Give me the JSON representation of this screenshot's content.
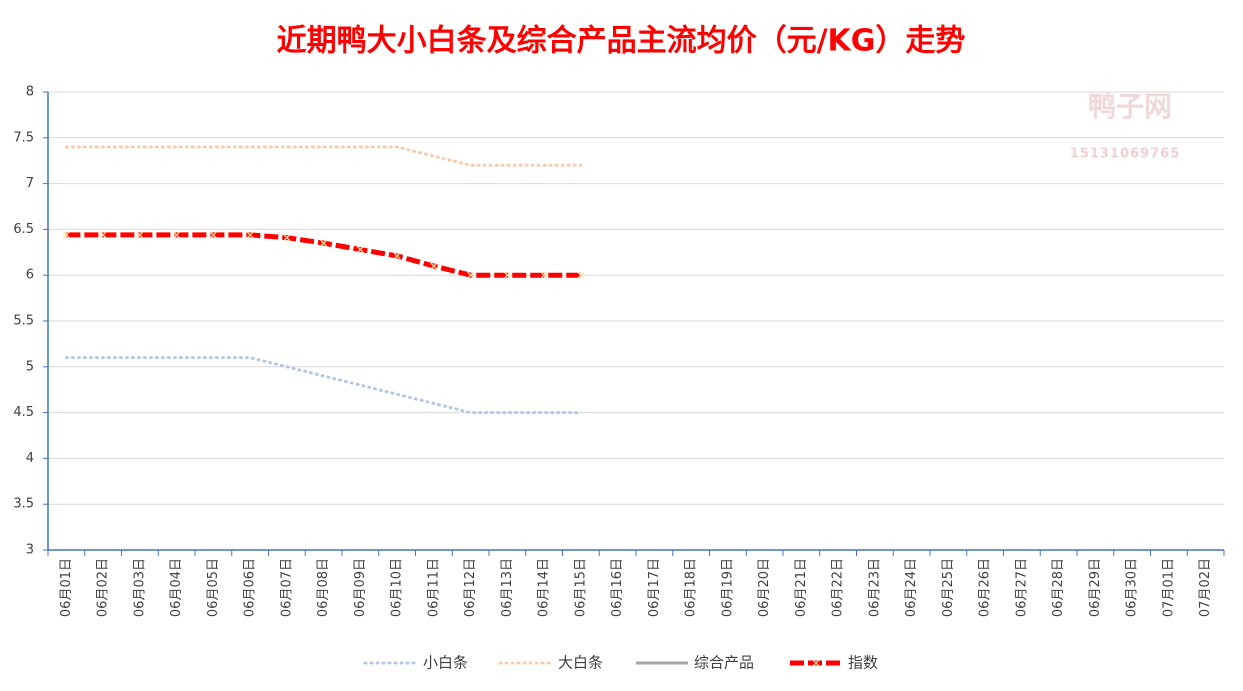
{
  "chart_data": {
    "type": "line",
    "title": "近期鸭大小白条及综合产品主流均价（元/KG）走势",
    "watermark": [
      "鸭子网",
      "15131069765"
    ],
    "categories": [
      "06月01日",
      "06月02日",
      "06月03日",
      "06月04日",
      "06月05日",
      "06月06日",
      "06月07日",
      "06月08日",
      "06月09日",
      "06月10日",
      "06月11日",
      "06月12日",
      "06月13日",
      "06月14日",
      "06月15日",
      "06月16日",
      "06月17日",
      "06月18日",
      "06月19日",
      "06月20日",
      "06月21日",
      "06月22日",
      "06月23日",
      "06月24日",
      "06月25日",
      "06月26日",
      "06月27日",
      "06月28日",
      "06月29日",
      "06月30日",
      "07月01日",
      "07月02日"
    ],
    "series": [
      {
        "name": "小白条",
        "color": "#b4c7e7",
        "style": "dotted",
        "values": [
          5.1,
          5.1,
          5.1,
          5.1,
          5.1,
          5.1,
          5.0,
          4.9,
          4.8,
          4.7,
          4.6,
          4.5,
          4.5,
          4.5,
          4.5,
          null,
          null,
          null,
          null,
          null,
          null,
          null,
          null,
          null,
          null,
          null,
          null,
          null,
          null,
          null,
          null,
          null
        ]
      },
      {
        "name": "大白条",
        "color": "#f8cbad",
        "style": "dotted",
        "values": [
          7.4,
          7.4,
          7.4,
          7.4,
          7.4,
          7.4,
          7.4,
          7.4,
          7.4,
          7.4,
          7.3,
          7.2,
          7.2,
          7.2,
          7.2,
          null,
          null,
          null,
          null,
          null,
          null,
          null,
          null,
          null,
          null,
          null,
          null,
          null,
          null,
          null,
          null,
          null
        ]
      },
      {
        "name": "综合产品",
        "color": "#a5a5a5",
        "style": "solid",
        "values": [
          null,
          null,
          null,
          null,
          null,
          null,
          null,
          null,
          null,
          null,
          null,
          null,
          null,
          null,
          null,
          null,
          null,
          null,
          null,
          null,
          null,
          null,
          null,
          null,
          null,
          null,
          null,
          null,
          null,
          null,
          null,
          null
        ]
      },
      {
        "name": "指数",
        "color": "#ff0000",
        "style": "dashed",
        "values": [
          6.44,
          6.44,
          6.44,
          6.44,
          6.44,
          6.44,
          6.41,
          6.35,
          6.28,
          6.21,
          6.1,
          6.0,
          6.0,
          6.0,
          6.0,
          null,
          null,
          null,
          null,
          null,
          null,
          null,
          null,
          null,
          null,
          null,
          null,
          null,
          null,
          null,
          null,
          null
        ]
      }
    ],
    "ylim": [
      3,
      8
    ],
    "yticks": [
      3,
      3.5,
      4,
      4.5,
      5,
      5.5,
      6,
      6.5,
      7,
      7.5,
      8
    ],
    "grid": true,
    "legend": "bottom"
  }
}
